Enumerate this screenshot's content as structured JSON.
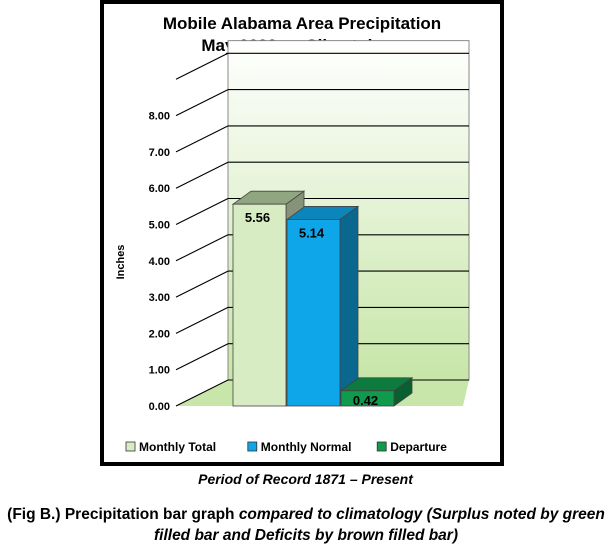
{
  "chart_data": {
    "type": "bar",
    "title": [
      "Mobile Alabama Area Precipitation",
      "May 2020 vs Climatology"
    ],
    "ylabel": "Inches",
    "xlabel": "",
    "ylim": [
      0,
      8
    ],
    "yticks": [
      "0.00",
      "1.00",
      "2.00",
      "3.00",
      "4.00",
      "5.00",
      "6.00",
      "7.00",
      "8.00"
    ],
    "grid": true,
    "legend_position": "bottom",
    "series": [
      {
        "name": "Monthly Total",
        "value": 5.56,
        "label": "5.56",
        "color": "#d8ecc4"
      },
      {
        "name": "Monthly Normal",
        "value": 5.14,
        "label": "5.14",
        "color": "#0ea6e8"
      },
      {
        "name": "Departure",
        "value": 0.42,
        "label": "0.42",
        "color": "#0f9a4c"
      }
    ]
  },
  "footer": {
    "period": "Period of Record 1871 – Present",
    "caption_plain_1": "(Fig B.) Precipitation bar graph ",
    "caption_italic": "compared to climatology (Surplus noted by green filled bar and Deficits by brown filled bar)"
  }
}
